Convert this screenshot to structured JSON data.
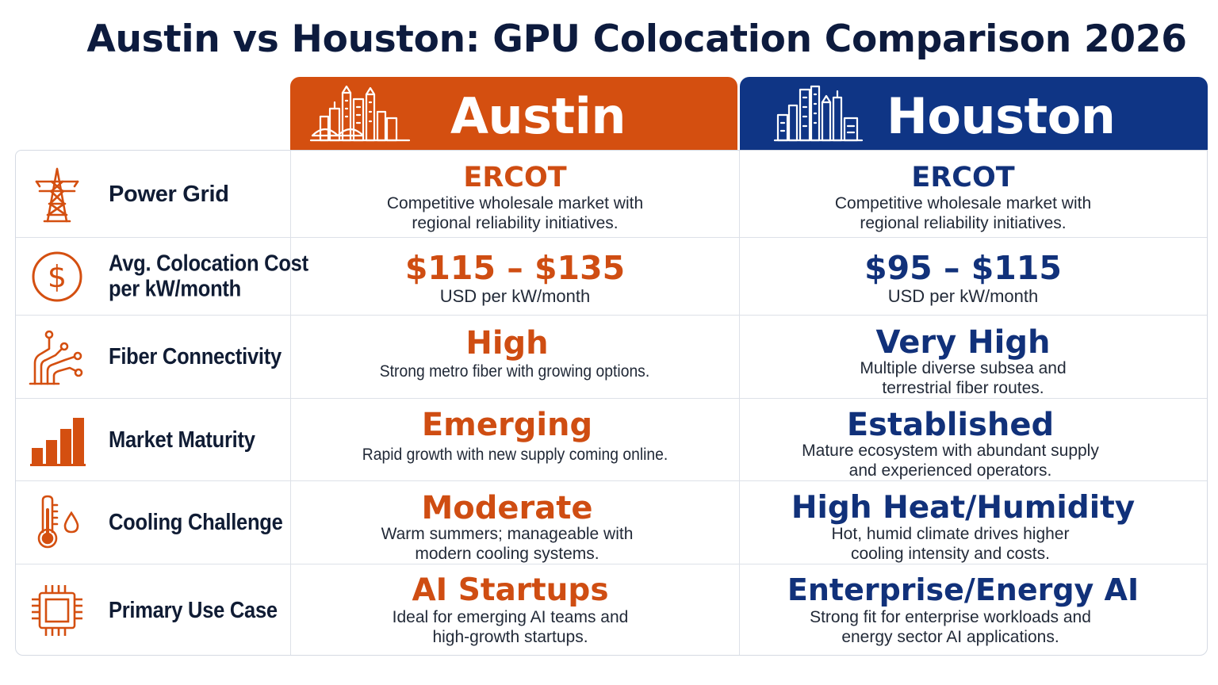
{
  "title": "Austin vs Houston: GPU Colocation Comparison 2026",
  "cities": {
    "austin": {
      "name": "Austin",
      "color": "#d44f10"
    },
    "houston": {
      "name": "Houston",
      "color": "#0f3585"
    }
  },
  "rows": [
    {
      "icon": "power-tower-icon",
      "label": "Power Grid",
      "austin": {
        "value": "ERCOT",
        "desc_lines": [
          "Competitive wholesale market with",
          "regional reliability initiatives."
        ]
      },
      "houston": {
        "value": "ERCOT",
        "desc_lines": [
          "Competitive wholesale market with",
          "regional reliability initiatives."
        ]
      }
    },
    {
      "icon": "dollar-circle-icon",
      "label_lines": [
        "Avg. Colocation Cost",
        "per kW/month"
      ],
      "austin": {
        "value": "$115 – $135",
        "desc_lines": [
          "USD per kW/month"
        ]
      },
      "houston": {
        "value": "$95 – $115",
        "desc_lines": [
          "USD per kW/month"
        ]
      }
    },
    {
      "icon": "fiber-network-icon",
      "label": "Fiber Connectivity",
      "austin": {
        "value": "High",
        "desc_lines": [
          "Strong metro fiber with growing options."
        ]
      },
      "houston": {
        "value": "Very High",
        "desc_lines": [
          "Multiple diverse subsea and",
          "terrestrial fiber routes."
        ]
      }
    },
    {
      "icon": "bar-chart-icon",
      "label": "Market Maturity",
      "austin": {
        "value": "Emerging",
        "desc_lines": [
          "Rapid growth with new supply coming online."
        ]
      },
      "houston": {
        "value": "Established",
        "desc_lines": [
          "Mature ecosystem with abundant supply",
          "and experienced operators."
        ]
      }
    },
    {
      "icon": "thermometer-icon",
      "label": "Cooling Challenge",
      "austin": {
        "value": "Moderate",
        "desc_lines": [
          "Warm summers; manageable with",
          "modern cooling systems."
        ]
      },
      "houston": {
        "value": "High Heat/Humidity",
        "desc_lines": [
          "Hot, humid climate drives higher",
          "cooling intensity and costs."
        ]
      }
    },
    {
      "icon": "chip-icon",
      "label": "Primary Use Case",
      "austin": {
        "value": "AI Startups",
        "desc_lines": [
          "Ideal for emerging AI teams and",
          "high-growth startups."
        ]
      },
      "houston": {
        "value": "Enterprise/Energy AI",
        "desc_lines": [
          "Strong fit for enterprise workloads and",
          "energy sector AI applications."
        ]
      }
    }
  ]
}
